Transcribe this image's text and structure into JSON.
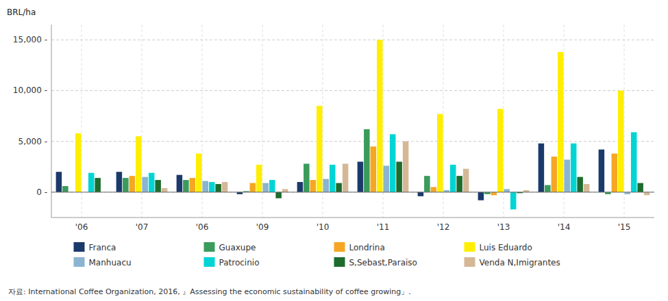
{
  "chart_data": {
    "type": "bar",
    "y_label": "BRL/ha",
    "annotations": [
      "자료: International Coffee Organization, 2016, 』Assessing the economic sustainability of coffee growing」."
    ],
    "categories": [
      "'06",
      "'07",
      "'06",
      "'09",
      "'10",
      "'11",
      "'12",
      "'13",
      "'14",
      "'15"
    ],
    "series": [
      {
        "name": "Franca",
        "color": "#1b3a6b",
        "values": [
          2000,
          2000,
          1700,
          -200,
          1000,
          3000,
          -400,
          -800,
          4800,
          4200
        ]
      },
      {
        "name": "Guaxupe",
        "color": "#3a9b5c",
        "values": [
          600,
          1400,
          1200,
          100,
          2800,
          6200,
          1600,
          -200,
          700,
          -200
        ]
      },
      {
        "name": "Londrina",
        "color": "#f5a623",
        "values": [
          0,
          1600,
          1400,
          900,
          1200,
          4500,
          500,
          -300,
          3500,
          3800
        ]
      },
      {
        "name": "Luis Eduardo",
        "color": "#ffee00",
        "values": [
          5800,
          5500,
          3800,
          2700,
          8500,
          15000,
          7700,
          8200,
          13800,
          10000
        ]
      },
      {
        "name": "Manhuacu",
        "color": "#8ab4d0",
        "values": [
          0,
          1500,
          1100,
          900,
          1300,
          2600,
          200,
          300,
          3200,
          -200
        ]
      },
      {
        "name": "Patrocinio",
        "color": "#00d4d4",
        "values": [
          1900,
          1900,
          1000,
          1200,
          2700,
          5700,
          2700,
          -1700,
          4800,
          5900
        ]
      },
      {
        "name": "S,Sebast,Paraiso",
        "color": "#1e6b2e",
        "values": [
          1400,
          1200,
          800,
          -600,
          900,
          3000,
          1600,
          -100,
          1500,
          900
        ]
      },
      {
        "name": "Venda N,Imigrantes",
        "color": "#d4b896",
        "values": [
          0,
          400,
          1000,
          300,
          2800,
          5000,
          2300,
          200,
          800,
          -300
        ]
      }
    ],
    "ylim": [
      -2500,
      16500
    ],
    "yticks": [
      {
        "value": 0,
        "label": "0 -"
      },
      {
        "value": 5000,
        "label": "5,000 -"
      },
      {
        "value": 10000,
        "label": "10,000 -"
      },
      {
        "value": 15000,
        "label": "15,000 -"
      }
    ],
    "grid": true,
    "legend": "bottom"
  }
}
